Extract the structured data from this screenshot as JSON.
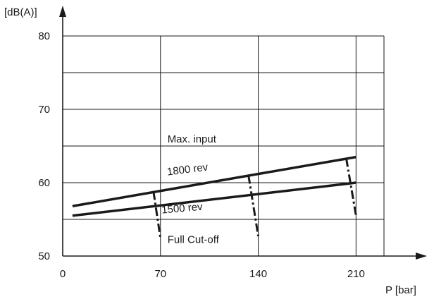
{
  "chart_data": {
    "type": "line",
    "title": "",
    "xlabel": "P [bar]",
    "ylabel": "[dB(A)]",
    "xlim": [
      0,
      230
    ],
    "ylim": [
      50,
      80
    ],
    "x_ticks": [
      0,
      70,
      140,
      210
    ],
    "y_ticks": [
      50,
      60,
      70,
      80
    ],
    "x_tick_labels": [
      "0",
      "70",
      "140",
      "210"
    ],
    "y_tick_labels": [
      "50",
      "60",
      "70",
      "80"
    ],
    "grid": true,
    "series": [
      {
        "name": "1800 rev",
        "x": [
          7,
          210
        ],
        "values": [
          56.8,
          63.5
        ]
      },
      {
        "name": "1500 rev",
        "x": [
          7,
          210
        ],
        "values": [
          55.5,
          60.0
        ]
      }
    ],
    "dash_dot_ranges": [
      {
        "x": 65,
        "top": 58.8,
        "x_end": 70,
        "bottom": 52.4
      },
      {
        "x": 133,
        "top": 61.0,
        "x_end": 140,
        "bottom": 52.7
      },
      {
        "x": 203,
        "top": 63.3,
        "x_end": 210,
        "bottom": 55.5
      }
    ],
    "annotations": [
      {
        "text": "Max. input",
        "x": 75,
        "y": 65.5
      },
      {
        "text": "1800 rev",
        "x": 75,
        "y": 61.0
      },
      {
        "text": "1500 rev",
        "x": 71,
        "y": 55.8
      },
      {
        "text": "Full Cut-off",
        "x": 75,
        "y": 51.8
      }
    ],
    "colors": {
      "line": "#1a1a1a",
      "grid": "#1a1a1a"
    }
  }
}
